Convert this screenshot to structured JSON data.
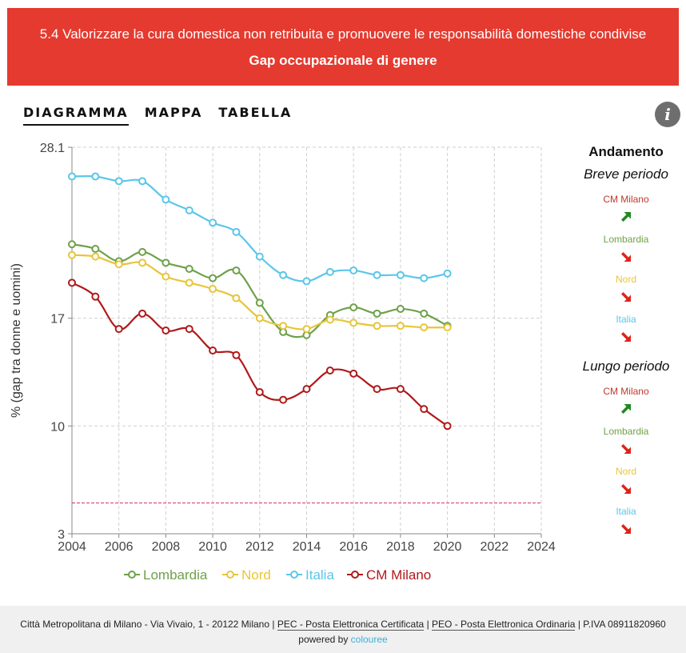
{
  "header": {
    "title": "5.4 Valorizzare la cura domestica non retribuita e promuovere le responsabilità domestiche condivise",
    "subtitle": "Gap occupazionale di genere"
  },
  "tabs": [
    {
      "label": "DIAGRAMMA",
      "active": true
    },
    {
      "label": "MAPPA",
      "active": false
    },
    {
      "label": "TABELLA",
      "active": false
    }
  ],
  "info_icon": "info-icon",
  "chart_data": {
    "type": "line",
    "ylabel": "% (gap tra donne e uomini)",
    "xlabel": "",
    "xlim": [
      2004,
      2024
    ],
    "ylim": [
      3,
      28.1
    ],
    "x_ticks": [
      2004,
      2006,
      2008,
      2010,
      2012,
      2014,
      2016,
      2018,
      2020,
      2022,
      2024
    ],
    "y_ticks": [
      3,
      10,
      17,
      28.1
    ],
    "grid": true,
    "legend_position": "bottom",
    "target_line": {
      "value": 5,
      "color": "#d6336c",
      "style": "dashed"
    },
    "x": [
      2004,
      2005,
      2006,
      2007,
      2008,
      2009,
      2010,
      2011,
      2012,
      2013,
      2014,
      2015,
      2016,
      2017,
      2018,
      2019,
      2020
    ],
    "series": [
      {
        "name": "Lombardia",
        "color": "#6fa14a",
        "values": [
          21.8,
          21.5,
          20.7,
          21.3,
          20.6,
          20.2,
          19.6,
          20.1,
          18.0,
          16.1,
          15.9,
          17.2,
          17.7,
          17.3,
          17.6,
          17.3,
          16.5
        ]
      },
      {
        "name": "Nord",
        "color": "#e8c53a",
        "values": [
          21.1,
          21.0,
          20.5,
          20.6,
          19.7,
          19.3,
          18.9,
          18.3,
          17.0,
          16.5,
          16.3,
          16.9,
          16.7,
          16.5,
          16.5,
          16.4,
          16.4
        ]
      },
      {
        "name": "Italia",
        "color": "#5bc6ea",
        "values": [
          26.2,
          26.2,
          25.9,
          25.9,
          24.7,
          24.0,
          23.2,
          22.6,
          21.0,
          19.8,
          19.4,
          20.0,
          20.1,
          19.8,
          19.8,
          19.6,
          19.9
        ]
      },
      {
        "name": "CM Milano",
        "color": "#b01a1a",
        "values": [
          19.3,
          18.4,
          16.3,
          17.3,
          16.2,
          16.3,
          14.9,
          14.6,
          12.2,
          11.7,
          12.4,
          13.6,
          13.4,
          12.4,
          12.4,
          11.1,
          10.0
        ]
      }
    ]
  },
  "side": {
    "title": "Andamento",
    "periods": [
      {
        "label": "Breve periodo",
        "items": [
          {
            "name": "CM Milano",
            "color": "#c0392b",
            "direction": "up",
            "arrow_color": "#1e8a1e"
          },
          {
            "name": "Lombardia",
            "color": "#6fa14a",
            "direction": "down",
            "arrow_color": "#e0221a"
          },
          {
            "name": "Nord",
            "color": "#e8c53a",
            "direction": "down",
            "arrow_color": "#e0221a"
          },
          {
            "name": "Italia",
            "color": "#5bc6ea",
            "direction": "down",
            "arrow_color": "#e0221a"
          }
        ]
      },
      {
        "label": "Lungo periodo",
        "items": [
          {
            "name": "CM Milano",
            "color": "#c0392b",
            "direction": "up",
            "arrow_color": "#1e8a1e"
          },
          {
            "name": "Lombardia",
            "color": "#6fa14a",
            "direction": "down",
            "arrow_color": "#e0221a"
          },
          {
            "name": "Nord",
            "color": "#e8c53a",
            "direction": "down",
            "arrow_color": "#e0221a"
          },
          {
            "name": "Italia",
            "color": "#5bc6ea",
            "direction": "down",
            "arrow_color": "#e0221a"
          }
        ]
      }
    ]
  },
  "footer": {
    "address": "Città Metropolitana di Milano - Via Vivaio, 1 - 20122 Milano |",
    "pec": "PEC - Posta Elettronica Certificata",
    "sep1": "|",
    "peo": "PEO - Posta Elettronica Ordinaria",
    "piva": "| P.IVA 08911820960",
    "powered": "powered by",
    "brand": "colouree"
  }
}
